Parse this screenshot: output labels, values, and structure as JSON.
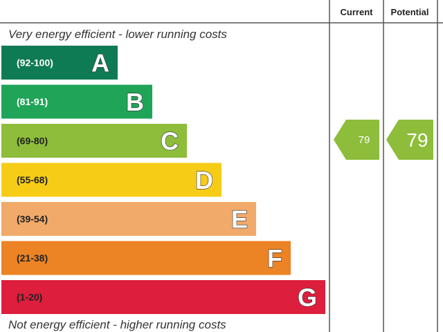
{
  "chart_data": {
    "type": "bar",
    "header": {
      "current": "Current",
      "potential": "Potential"
    },
    "top_caption": "Very energy efficient - lower running costs",
    "bottom_caption": "Not energy efficient - higher running costs",
    "bands": [
      {
        "letter": "A",
        "range": "(92-100)",
        "min": 92,
        "max": 100,
        "color": "#0f7b55",
        "label_color": "#ffffff"
      },
      {
        "letter": "B",
        "range": "(81-91)",
        "min": 81,
        "max": 91,
        "color": "#20a457",
        "label_color": "#ffffff"
      },
      {
        "letter": "C",
        "range": "(69-80)",
        "min": 69,
        "max": 80,
        "color": "#8dbd3a",
        "label_color": "#222222"
      },
      {
        "letter": "D",
        "range": "(55-68)",
        "min": 55,
        "max": 68,
        "color": "#f7cc17",
        "label_color": "#222222"
      },
      {
        "letter": "E",
        "range": "(39-54)",
        "min": 39,
        "max": 54,
        "color": "#f1aa6a",
        "label_color": "#222222"
      },
      {
        "letter": "F",
        "range": "(21-38)",
        "min": 21,
        "max": 38,
        "color": "#ec8324",
        "label_color": "#222222"
      },
      {
        "letter": "G",
        "range": "(1-20)",
        "min": 1,
        "max": 20,
        "color": "#dd1e3c",
        "label_color": "#222222"
      }
    ],
    "current": {
      "value": 79,
      "band": "C",
      "color": "#8dbd3a"
    },
    "potential": {
      "value": 79,
      "band": "C",
      "color": "#8dbd3a"
    }
  }
}
